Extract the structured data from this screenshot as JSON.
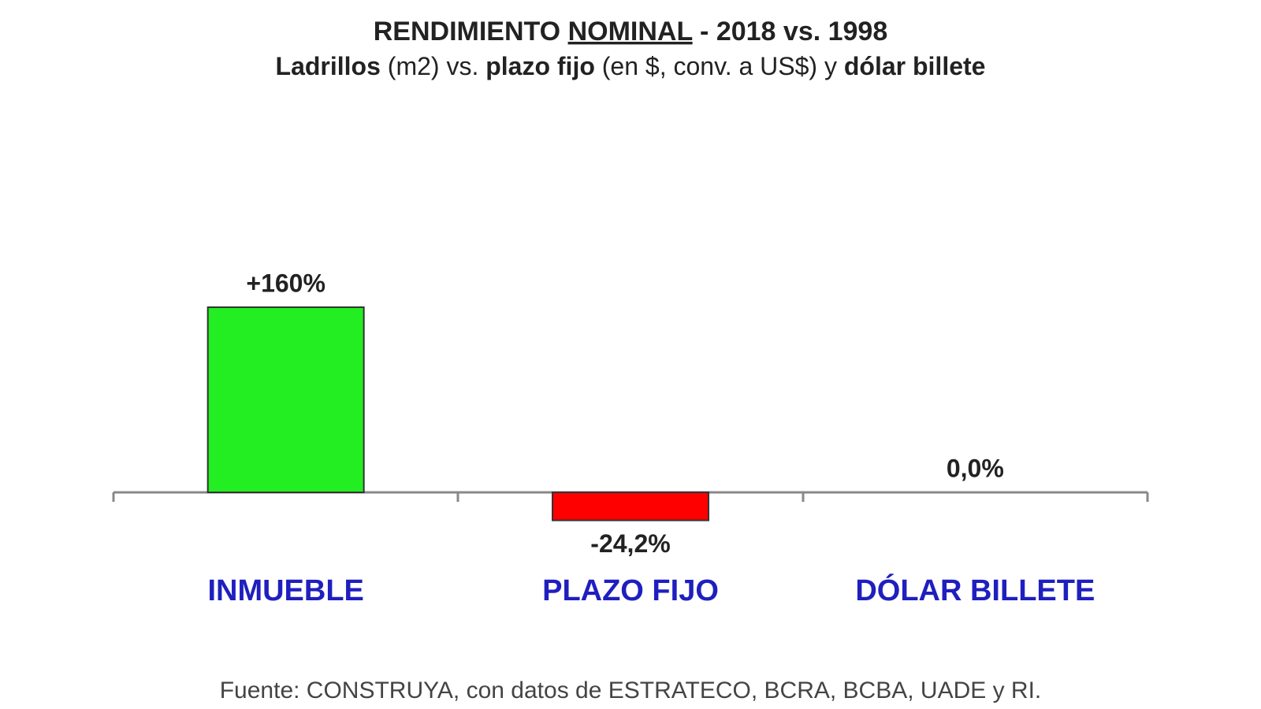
{
  "chart_data": {
    "type": "bar",
    "title": [
      {
        "text": "RENDIMIENTO ",
        "bold": true
      },
      {
        "text": "NOMINAL",
        "bold": true,
        "underline": true
      },
      {
        "text": " - 2018 vs. 1998",
        "bold": true
      }
    ],
    "subtitle": [
      {
        "text": "Ladrillos",
        "bold": true
      },
      {
        "text": " (m2) vs. ",
        "bold": false
      },
      {
        "text": "plazo fijo",
        "bold": true
      },
      {
        "text": " (en $, conv. a US$) y ",
        "bold": false
      },
      {
        "text": "dólar billete",
        "bold": true
      }
    ],
    "categories": [
      "INMUEBLE",
      "PLAZO FIJO",
      "DÓLAR BILLETE"
    ],
    "values": [
      160,
      -24.2,
      0
    ],
    "value_labels": [
      "+160%",
      "-24,2%",
      "0,0%"
    ],
    "colors": [
      "#22ee22",
      "#ff0000",
      "#22ee22"
    ],
    "category_color": "#1f1fbf",
    "source": "Fuente: CONSTRUYA, con datos de ESTRATECO, BCRA, BCBA, UADE y RI."
  }
}
